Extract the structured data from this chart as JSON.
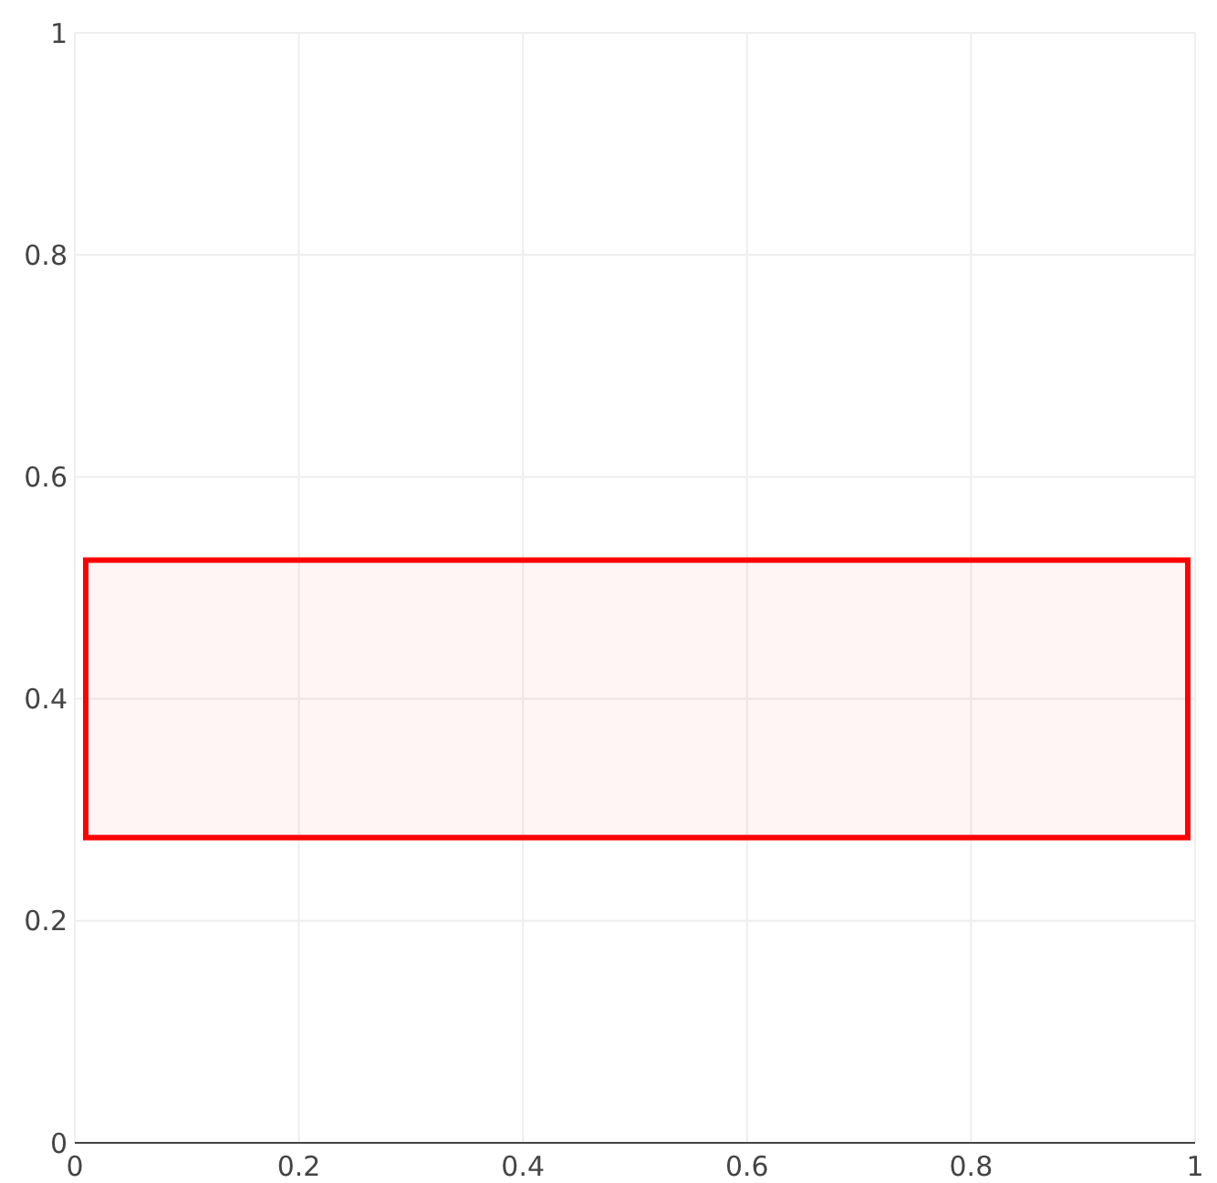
{
  "chart_data": {
    "type": "scatter",
    "xlim": [
      0,
      1
    ],
    "ylim": [
      0,
      1
    ],
    "xticks": [
      0,
      0.2,
      0.4,
      0.6,
      0.8,
      1
    ],
    "yticks": [
      0,
      0.2,
      0.4,
      0.6,
      0.8,
      1
    ],
    "grid": true,
    "bands": [
      {
        "axis": "y",
        "from": 0.275,
        "to": 0.525,
        "color": "#ff0000"
      }
    ]
  }
}
